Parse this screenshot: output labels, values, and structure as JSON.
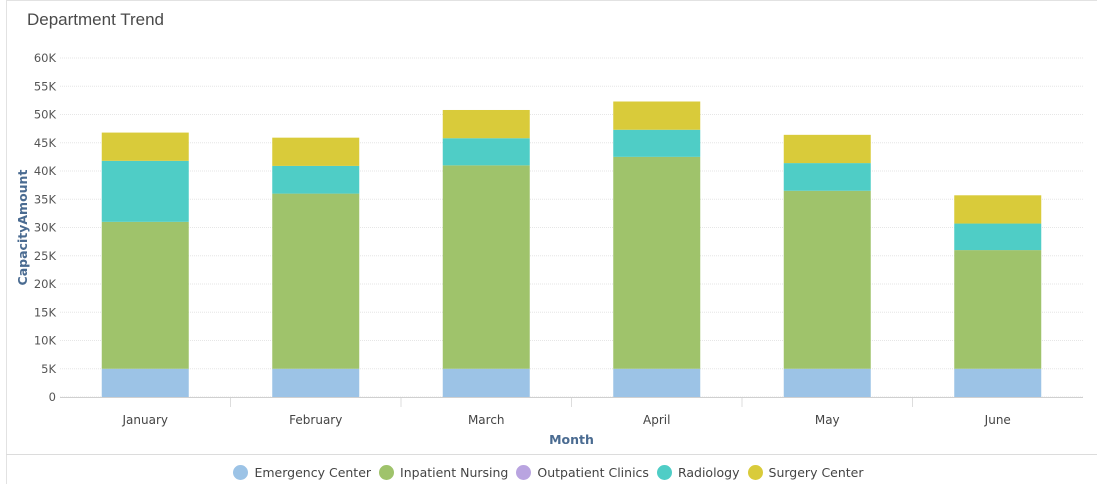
{
  "title": "Department Trend",
  "chart_data": {
    "type": "bar",
    "stacked": true,
    "categories": [
      "January",
      "February",
      "March",
      "April",
      "May",
      "June"
    ],
    "series": [
      {
        "name": "Emergency Center",
        "color": "#9cc3e6",
        "values": [
          5000,
          5000,
          5000,
          5000,
          5000,
          5000
        ]
      },
      {
        "name": "Inpatient Nursing",
        "color": "#9fc36b",
        "values": [
          26000,
          31000,
          36000,
          37500,
          31500,
          21000
        ]
      },
      {
        "name": "Outpatient Clinics",
        "color": "#b9a4e0",
        "values": [
          0,
          0,
          0,
          0,
          0,
          0
        ]
      },
      {
        "name": "Radiology",
        "color": "#4fcdc6",
        "values": [
          10800,
          4900,
          4800,
          4800,
          4900,
          4700
        ]
      },
      {
        "name": "Surgery Center",
        "color": "#d9cb3a",
        "values": [
          5000,
          5000,
          5000,
          5000,
          5000,
          5000
        ]
      }
    ],
    "xlabel": "Month",
    "ylabel": "CapacityAmount",
    "ylim": [
      0,
      60000
    ],
    "yticks": [
      0,
      5000,
      10000,
      15000,
      20000,
      25000,
      30000,
      35000,
      40000,
      45000,
      50000,
      55000,
      60000
    ],
    "ytick_labels": [
      "0",
      "5K",
      "10K",
      "15K",
      "20K",
      "25K",
      "30K",
      "35K",
      "40K",
      "45K",
      "50K",
      "55K",
      "60K"
    ],
    "grid": true,
    "legend_position": "bottom"
  }
}
